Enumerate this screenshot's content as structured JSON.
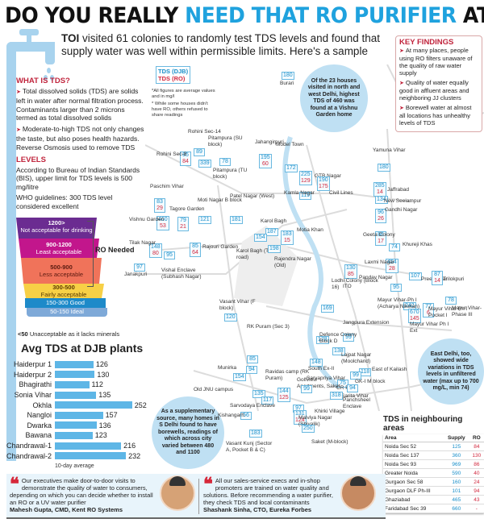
{
  "title": {
    "part1": "DO YOU REALLY ",
    "highlight": "NEED THAT RO PURIFIER",
    "part2": " AT HOME?"
  },
  "intro": {
    "bold": "TOI",
    "text": " visited 61 colonies to randomly test TDS levels and found that supply water was well within permissible limits. Here's a sample"
  },
  "what_is_tds": {
    "heading": "WHAT IS TDS?",
    "points": [
      "Total dissolved solids (TDS) are solids left in water after normal filtration process. Contaminants larger than 2 microns termed as total dissolved solids",
      "Moderate-to-high TDS not only changes the taste, but also poses health hazards. Reverse Osmosis used to remove TDS"
    ]
  },
  "levels": {
    "heading": "LEVELS",
    "bis": "According to Bureau of Indian Standards (BIS), upper limit for TDS levels is 500 mg/litre",
    "who": "WHO guidelines: 300 TDS level considered excellent"
  },
  "glass": [
    {
      "range": "1200>",
      "label": "Not acceptable for drinking",
      "color": "#6b2c91"
    },
    {
      "range": "900-1200",
      "label": "Least acceptable",
      "color": "#c2168c"
    },
    {
      "range": "500-900",
      "label": "Less acceptable",
      "color": "#f0735a"
    },
    {
      "range": "300-500",
      "label": "Fairly acceptable",
      "color": "#f7d046"
    },
    {
      "range": "150-300",
      "label": "Good",
      "color": "#1d8ac9"
    },
    {
      "range": "50-150",
      "label": "Ideal",
      "color": "#7ea9d8"
    }
  ],
  "ro_needed": "RO Needed",
  "below50": {
    "bold": "<50",
    "text": " Unacceptable as it lacks minerals"
  },
  "chart_data": {
    "type": "bar",
    "title": "Avg TDS at DJB plants",
    "categories": [
      "Haiderpur 1",
      "Haiderpur 2",
      "Bhagirathi",
      "Sonia Vihar",
      "Okhla",
      "Nangloi",
      "Dwarka",
      "Bawana",
      "Chandrawal-1",
      "Chandrawal-2"
    ],
    "values": [
      126,
      130,
      112,
      135,
      252,
      157,
      136,
      123,
      216,
      232
    ],
    "xlabel": "10-day average",
    "orientation": "horizontal",
    "color": "#5eb6e6"
  },
  "map": {
    "legend": {
      "djb": "TDS (DJB)",
      "ro": "TDS (RO)"
    },
    "notes": [
      "*All figures are average values and in mg/l",
      "* While some houses didn't have RO, others refused to share readings"
    ],
    "bubbles": {
      "north": "Of the 23 houses visited in north and west Delhi, highest TDS of 460 was found at a Vishnu Garden home",
      "east": "East Delhi, too, showed wide variations in TDS levels in unfiltered water (max up to 700 mg/L, min 74)",
      "south": "As a supplementary source, many homes in S Delhi found to have borewells, readings of which across city varied between 480 and 1100"
    },
    "locations": [
      {
        "name": "Burari",
        "djb": "180",
        "ro": ""
      },
      {
        "name": "Rohini Sec-14",
        "djb": "89",
        "ro": ""
      },
      {
        "name": "Rohini Sec-8",
        "djb": "85",
        "ro": "84"
      },
      {
        "name": "Pitampura (SU block)",
        "djb": "339",
        "ro": ""
      },
      {
        "name": "Pitampura (TU block)",
        "djb": "78",
        "ro": ""
      },
      {
        "name": "Jahangirpuri",
        "djb": "195",
        "ro": "60"
      },
      {
        "name": "Model Town",
        "djb": "172",
        "ro": ""
      },
      {
        "name": "GTB Nagar",
        "djb": "225",
        "ro": "129"
      },
      {
        "name": "Civil Lines",
        "djb": "190",
        "ro": "175"
      },
      {
        "name": "Kamla Nagar",
        "djb": "119",
        "ro": ""
      },
      {
        "name": "Yamuna Vihar",
        "djb": "180",
        "ro": ""
      },
      {
        "name": "Jaffrabad",
        "djb": "285",
        "ro": "14"
      },
      {
        "name": "New Seelampur",
        "djb": "134",
        "ro": ""
      },
      {
        "name": "Gandhi Nagar",
        "djb": "96",
        "ro": "26"
      },
      {
        "name": "Paschim Vihar",
        "djb": "83",
        "ro": "29"
      },
      {
        "name": "Vishnu Garden",
        "djb": "460",
        "ro": "53"
      },
      {
        "name": "Tagore Garden",
        "djb": "79",
        "ro": "21"
      },
      {
        "name": "Moti Nagar B block",
        "djb": "121",
        "ro": ""
      },
      {
        "name": "Patel Nagar (West)",
        "djb": "181",
        "ro": ""
      },
      {
        "name": "Karol Bagh",
        "djb": "187",
        "ro": ""
      },
      {
        "name": "Karol Bagh (Tank road)",
        "djb": "154",
        "ro": ""
      },
      {
        "name": "Rajendra Nagar (Old)",
        "djb": "198",
        "ro": ""
      },
      {
        "name": "Motia Khan",
        "djb": "183",
        "ro": "15"
      },
      {
        "name": "Tilak Nagar",
        "djb": "148",
        "ro": "80"
      },
      {
        "name": "Janakpuri",
        "djb": "97",
        "ro": ""
      },
      {
        "name": "Vishal Enclave (Subhash Nagar)",
        "djb": "95",
        "ro": ""
      },
      {
        "name": "Rajouri Garden",
        "djb": "85",
        "ro": "64"
      },
      {
        "name": "Geeta Colony",
        "djb": "86",
        "ro": "17"
      },
      {
        "name": "Khureji Khas",
        "djb": "74",
        "ro": ""
      },
      {
        "name": "Preet Vihar",
        "djb": "107",
        "ro": ""
      },
      {
        "name": "Laxmi Nagar",
        "djb": "454",
        "ro": "28"
      },
      {
        "name": "ITO",
        "djb": "130",
        "ro": "85"
      },
      {
        "name": "Pandav Nagar",
        "djb": "95",
        "ro": ""
      },
      {
        "name": "Trilokpuri",
        "djb": "87",
        "ro": "14"
      },
      {
        "name": "Mayur Vihar-Ph I (Acharya Niketan)",
        "djb": "242",
        "ro": ""
      },
      {
        "name": "Mayur Vihar Ph I Pocket I",
        "djb": "77",
        "ro": "6"
      },
      {
        "name": "Mayur Vihar-Phase III",
        "djb": "78",
        "ro": ""
      },
      {
        "name": "Mayur Vihar Ph I Ext",
        "djb": "670",
        "ro": "145"
      },
      {
        "name": "Lodhi Colony (Block 16)",
        "djb": "169",
        "ro": ""
      },
      {
        "name": "Jangpura Extension",
        "djb": "99",
        "ro": ""
      },
      {
        "name": "Defence Colony Block D",
        "djb": "178",
        "ro": ""
      },
      {
        "name": "Lajpat Nagar (Moolchand)",
        "djb": "138",
        "ro": ""
      },
      {
        "name": "South Ex-II",
        "djb": "148",
        "ro": ""
      },
      {
        "name": "East of Kailash",
        "djb": "118",
        "ro": ""
      },
      {
        "name": "GK-I M block",
        "djb": "99",
        "ro": ""
      },
      {
        "name": "CR Park",
        "djb": "75",
        "ro": ""
      },
      {
        "name": "Sarita Vihar",
        "djb": "94",
        "ro": ""
      },
      {
        "name": "Vasant Vihar (F block)",
        "djb": "120",
        "ro": ""
      },
      {
        "name": "RK Puram (Sec 3)",
        "djb": "85",
        "ro": ""
      },
      {
        "name": "Ravidas camp (RK Puram)",
        "djb": "94",
        "ro": ""
      },
      {
        "name": "Munirka",
        "djb": "154",
        "ro": ""
      },
      {
        "name": "Old JNU campus",
        "djb": "135",
        "ro": ""
      },
      {
        "name": "Golfview Apartments, Saket",
        "djb": "144",
        "ro": "125"
      },
      {
        "name": "Sarvapriya Vihar",
        "djb": "99",
        "ro": ""
      },
      {
        "name": "Sarvodaya Enclave",
        "djb": "117",
        "ro": ""
      },
      {
        "name": "Panchsheel Enclave",
        "djb": "318",
        "ro": ""
      },
      {
        "name": "Khirki Village",
        "djb": "97",
        "ro": ""
      },
      {
        "name": "Malviya Nagar (Shivalik)",
        "djb": "131",
        "ro": "124"
      },
      {
        "name": "Kishangarh",
        "djb": "56",
        "ro": ""
      },
      {
        "name": "Vasant Kunj (Sector A, Pocket B & C)",
        "djb": "183",
        "ro": ""
      },
      {
        "name": "Saket (M-block)",
        "djb": "250",
        "ro": ""
      }
    ]
  },
  "key_findings": {
    "heading": "KEY FINDINGS",
    "points": [
      "At many places, people using RO filters unaware of the quality of raw water supply",
      "Quality of water equally good in affluent areas and neighboring JJ clusters",
      "Borewell water at almost all locations has unhealthy levels of TDS"
    ]
  },
  "neighbouring": {
    "title": "TDS in neighbouring areas",
    "headers": [
      "Area",
      "Supply",
      "RO"
    ],
    "rows": [
      [
        "Noida Sec 52",
        "125",
        "84"
      ],
      [
        "Noida Sec 137",
        "360",
        "130"
      ],
      [
        "Noida Sec 93",
        "969",
        "86"
      ],
      [
        "Greater Noida",
        "590",
        "40"
      ],
      [
        "Gurgaon Sec 58",
        "160",
        "24"
      ],
      [
        "Gurgaon DLF Ph-III",
        "101",
        "94"
      ],
      [
        "Ghaziabad",
        "465",
        "43"
      ],
      [
        "Faridabad Sec 39",
        "660",
        "-"
      ]
    ]
  },
  "quotes": [
    {
      "text": "Our executives make door-to-door visits to demonstrate the quality of water to consumers, depending on which you can decide whether to install an RO or a UV water purifier",
      "who": "Mahesh Gupta, CMD, Kent RO Systems"
    },
    {
      "text": "All our sales-service execs and in-shop promoters are trained on water quality and solutions. Before recommending a water purifier, they check TDS and local contaminants",
      "who": "Shashank Sinha, CTO, Eureka Forbes"
    }
  ]
}
